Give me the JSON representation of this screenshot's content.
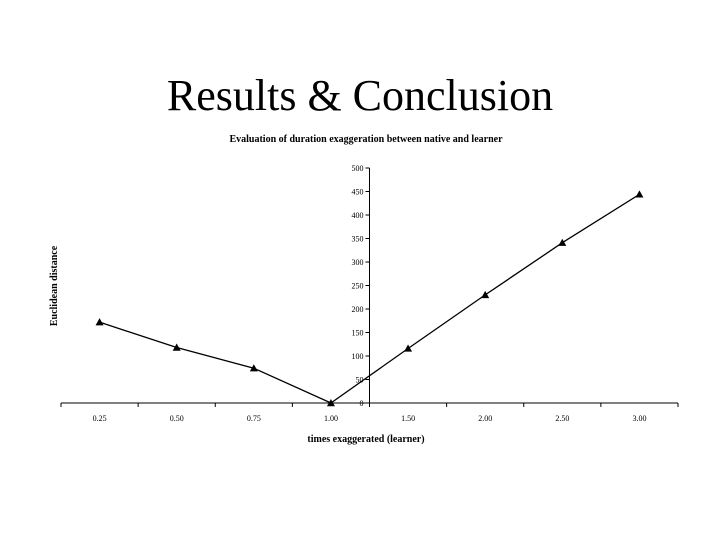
{
  "slide": {
    "title": "Results & Conclusion"
  },
  "chart_data": {
    "type": "line",
    "title": "Evaluation of duration exaggeration between native and learner",
    "xlabel": "times exaggerated (learner)",
    "ylabel": "Euclidean distance",
    "categories": [
      "0.25",
      "0.50",
      "0.75",
      "1.00",
      "1.50",
      "2.00",
      "2.50",
      "3.00"
    ],
    "series": [
      {
        "values": [
          172,
          118,
          74,
          0,
          116,
          230,
          341,
          444
        ]
      }
    ],
    "ylim": [
      0,
      500
    ],
    "yticks": [
      0,
      50,
      100,
      150,
      200,
      250,
      300,
      350,
      400,
      450,
      500
    ],
    "y_axis_position": "at x category 1.00",
    "marker": "triangle",
    "line_color": "#000000",
    "grid": false,
    "legend": "none"
  }
}
